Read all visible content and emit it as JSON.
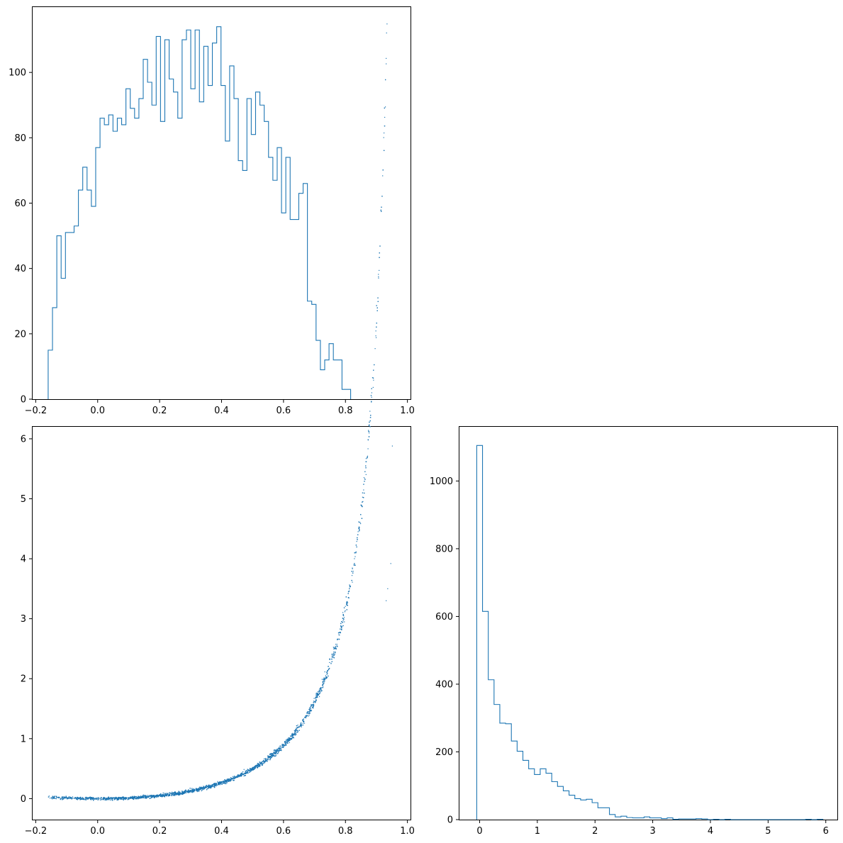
{
  "colors": {
    "series": "#1f77b4",
    "axes": "#000000",
    "background": "#ffffff"
  },
  "chart_data": [
    {
      "type": "histogram",
      "histtype": "step",
      "xlim": [
        -0.21,
        1.01
      ],
      "ylim": [
        0,
        120
      ],
      "x_ticks": [
        -0.2,
        0.0,
        0.2,
        0.4,
        0.6,
        0.8,
        1.0
      ],
      "x_tick_labels": [
        "−0.2",
        "0.0",
        "0.2",
        "0.4",
        "0.6",
        "0.8",
        "1.0"
      ],
      "y_ticks": [
        0,
        20,
        40,
        60,
        80,
        100
      ],
      "y_tick_labels": [
        "0",
        "20",
        "40",
        "60",
        "80",
        "100"
      ],
      "bin_start": -0.1598,
      "bin_width": 0.01395,
      "counts": [
        15,
        28,
        50,
        37,
        51,
        51,
        53,
        64,
        71,
        64,
        59,
        77,
        86,
        84,
        87,
        82,
        86,
        84,
        95,
        89,
        86,
        92,
        104,
        97,
        90,
        111,
        85,
        110,
        98,
        94,
        86,
        110,
        113,
        95,
        113,
        91,
        108,
        96,
        109,
        114,
        96,
        79,
        102,
        92,
        73,
        70,
        92,
        81,
        94,
        90,
        85,
        74,
        67,
        77,
        57,
        74,
        55,
        55,
        63,
        66,
        30,
        29,
        18,
        9,
        12,
        17,
        12,
        12,
        3,
        3
      ],
      "grid": false
    },
    {
      "type": "scatter",
      "xlim": [
        -0.21,
        1.01
      ],
      "ylim": [
        -0.35,
        6.2
      ],
      "x_ticks": [
        -0.2,
        0.0,
        0.2,
        0.4,
        0.6,
        0.8,
        1.0
      ],
      "x_tick_labels": [
        "−0.2",
        "0.0",
        "0.2",
        "0.4",
        "0.6",
        "0.8",
        "1.0"
      ],
      "y_ticks": [
        0,
        1,
        2,
        3,
        4,
        5,
        6
      ],
      "y_tick_labels": [
        "0",
        "1",
        "2",
        "3",
        "4",
        "5",
        "6"
      ],
      "marker": "pixel",
      "relation": "y ≈ x² / (1 − x)",
      "x_range": [
        -0.16,
        0.95
      ],
      "y_range": [
        -0.05,
        5.88
      ],
      "n_points": 5000,
      "grid": false
    },
    {
      "type": "histogram",
      "histtype": "step",
      "xlim": [
        -0.35,
        6.2
      ],
      "ylim": [
        0,
        1160
      ],
      "x_ticks": [
        0,
        1,
        2,
        3,
        4,
        5,
        6
      ],
      "x_tick_labels": [
        "0",
        "1",
        "2",
        "3",
        "4",
        "5",
        "6"
      ],
      "y_ticks": [
        0,
        200,
        400,
        600,
        800,
        1000
      ],
      "y_tick_labels": [
        "0",
        "200",
        "400",
        "600",
        "800",
        "1000"
      ],
      "bin_start": -0.05,
      "bin_width": 0.1,
      "counts": [
        1105,
        615,
        413,
        340,
        285,
        283,
        232,
        202,
        175,
        150,
        133,
        150,
        137,
        112,
        98,
        85,
        72,
        62,
        58,
        60,
        50,
        35,
        35,
        15,
        8,
        10,
        6,
        5,
        5,
        8,
        5,
        5,
        3,
        5,
        1,
        2,
        2,
        2,
        3,
        2,
        0,
        1,
        0,
        1,
        0,
        0,
        0,
        0,
        0,
        0,
        0,
        0,
        0,
        0,
        0,
        0,
        0,
        1,
        0,
        1
      ],
      "grid": false
    }
  ]
}
